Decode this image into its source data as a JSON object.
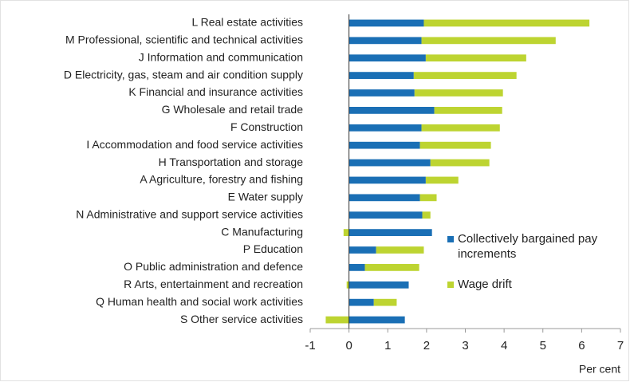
{
  "chart_data": {
    "type": "stacked_barh",
    "categories": [
      "L Real estate activities",
      "M Professional, scientific and technical activities",
      "J Information and communication",
      "D Electricity, gas, steam and air condition supply",
      "K Financial and insurance activities",
      "G Wholesale and retail trade",
      "F Construction",
      "I Accommodation and food service activities",
      "H Transportation and storage",
      "A Agriculture, forestry and fishing",
      "E Water supply",
      "N Administrative and support service activities",
      "C Manufacturing",
      "P Education",
      "O Public administration and defence",
      "R Arts, entertainment and recreation",
      "Q Human health and social work activities",
      "S Other service activities"
    ],
    "series": [
      {
        "name": "Collectively bargained pay increments",
        "color": "#1a6fb5",
        "values": [
          1.93,
          1.87,
          1.98,
          1.67,
          1.69,
          2.2,
          1.87,
          1.83,
          2.1,
          1.98,
          1.83,
          1.89,
          2.14,
          0.7,
          0.41,
          1.54,
          0.64,
          1.44
        ]
      },
      {
        "name": "Wage drift",
        "color": "#bdd431",
        "values": [
          4.27,
          3.46,
          2.59,
          2.65,
          2.28,
          1.75,
          2.02,
          1.83,
          1.52,
          0.84,
          0.43,
          0.21,
          -0.14,
          1.23,
          1.4,
          -0.06,
          0.59,
          -0.6
        ]
      }
    ],
    "xlabel": "Per cent",
    "xlim": [
      -1,
      7
    ],
    "xticks": [
      -1,
      0,
      1,
      2,
      3,
      4,
      5,
      6,
      7
    ],
    "grid": false
  }
}
